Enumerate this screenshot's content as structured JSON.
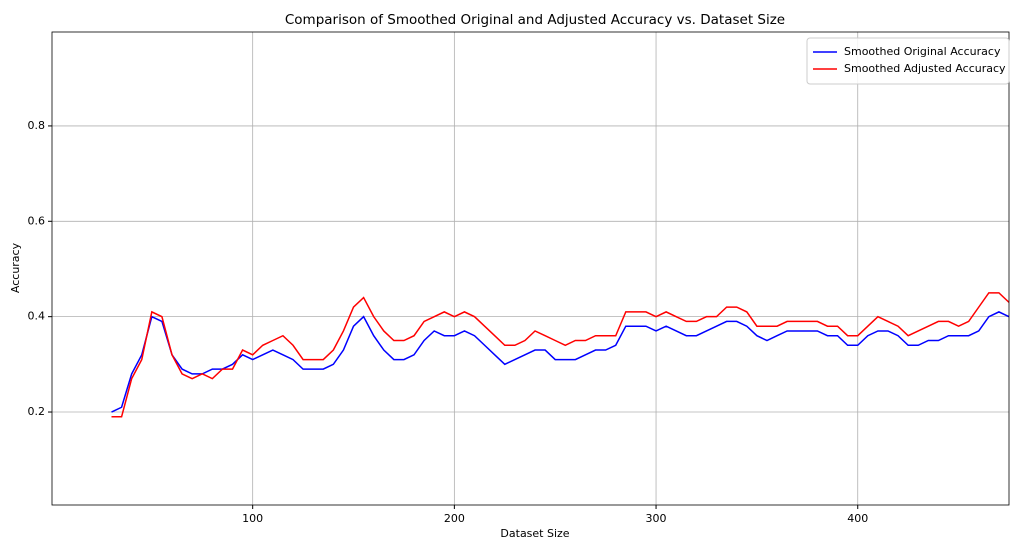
{
  "chart_data": {
    "type": "line",
    "title": "Comparison of Smoothed Original and Adjusted Accuracy vs. Dataset Size",
    "xlabel": "Dataset Size",
    "ylabel": "Accuracy",
    "x": [
      30,
      35,
      40,
      45,
      50,
      55,
      60,
      65,
      70,
      75,
      80,
      85,
      90,
      95,
      100,
      105,
      110,
      115,
      120,
      125,
      130,
      135,
      140,
      145,
      150,
      155,
      160,
      165,
      170,
      175,
      180,
      185,
      190,
      195,
      200,
      205,
      210,
      215,
      220,
      225,
      230,
      235,
      240,
      245,
      250,
      255,
      260,
      265,
      270,
      275,
      280,
      285,
      290,
      295,
      300,
      305,
      310,
      315,
      320,
      325,
      330,
      335,
      340,
      345,
      350,
      355,
      360,
      365,
      370,
      375,
      380,
      385,
      390,
      395,
      400,
      405,
      410,
      415,
      420,
      425,
      430,
      435,
      440,
      445,
      450,
      455,
      460,
      465,
      470,
      475
    ],
    "series": [
      {
        "name": "Smoothed Original Accuracy",
        "color": "#0000ff",
        "values": [
          0.2,
          0.21,
          0.28,
          0.32,
          0.4,
          0.39,
          0.32,
          0.29,
          0.28,
          0.28,
          0.29,
          0.29,
          0.3,
          0.32,
          0.31,
          0.32,
          0.33,
          0.32,
          0.31,
          0.29,
          0.29,
          0.29,
          0.3,
          0.33,
          0.38,
          0.4,
          0.36,
          0.33,
          0.31,
          0.31,
          0.32,
          0.35,
          0.37,
          0.36,
          0.36,
          0.37,
          0.36,
          0.34,
          0.32,
          0.3,
          0.31,
          0.32,
          0.33,
          0.33,
          0.31,
          0.31,
          0.31,
          0.32,
          0.33,
          0.33,
          0.34,
          0.38,
          0.38,
          0.38,
          0.37,
          0.38,
          0.37,
          0.36,
          0.36,
          0.37,
          0.38,
          0.39,
          0.39,
          0.38,
          0.36,
          0.35,
          0.36,
          0.37,
          0.37,
          0.37,
          0.37,
          0.36,
          0.36,
          0.34,
          0.34,
          0.36,
          0.37,
          0.37,
          0.36,
          0.34,
          0.34,
          0.35,
          0.35,
          0.36,
          0.36,
          0.36,
          0.37,
          0.4,
          0.41,
          0.4
        ]
      },
      {
        "name": "Smoothed Adjusted Accuracy",
        "color": "#ff0000",
        "values": [
          0.19,
          0.19,
          0.27,
          0.31,
          0.41,
          0.4,
          0.32,
          0.28,
          0.27,
          0.28,
          0.27,
          0.29,
          0.29,
          0.33,
          0.32,
          0.34,
          0.35,
          0.36,
          0.34,
          0.31,
          0.31,
          0.31,
          0.33,
          0.37,
          0.42,
          0.44,
          0.4,
          0.37,
          0.35,
          0.35,
          0.36,
          0.39,
          0.4,
          0.41,
          0.4,
          0.41,
          0.4,
          0.38,
          0.36,
          0.34,
          0.34,
          0.35,
          0.37,
          0.36,
          0.35,
          0.34,
          0.35,
          0.35,
          0.36,
          0.36,
          0.36,
          0.41,
          0.41,
          0.41,
          0.4,
          0.41,
          0.4,
          0.39,
          0.39,
          0.4,
          0.4,
          0.42,
          0.42,
          0.41,
          0.38,
          0.38,
          0.38,
          0.39,
          0.39,
          0.39,
          0.39,
          0.38,
          0.38,
          0.36,
          0.36,
          0.38,
          0.4,
          0.39,
          0.38,
          0.36,
          0.37,
          0.38,
          0.39,
          0.39,
          0.38,
          0.39,
          0.42,
          0.45,
          0.45,
          0.43
        ]
      }
    ],
    "xlim": [
      0.5,
      475
    ],
    "ylim": [
      0.005,
      0.997
    ],
    "xticks": [
      100,
      200,
      300,
      400
    ],
    "yticks": [
      0.2,
      0.4,
      0.6,
      0.8
    ],
    "grid": true,
    "legend": "upper right"
  }
}
